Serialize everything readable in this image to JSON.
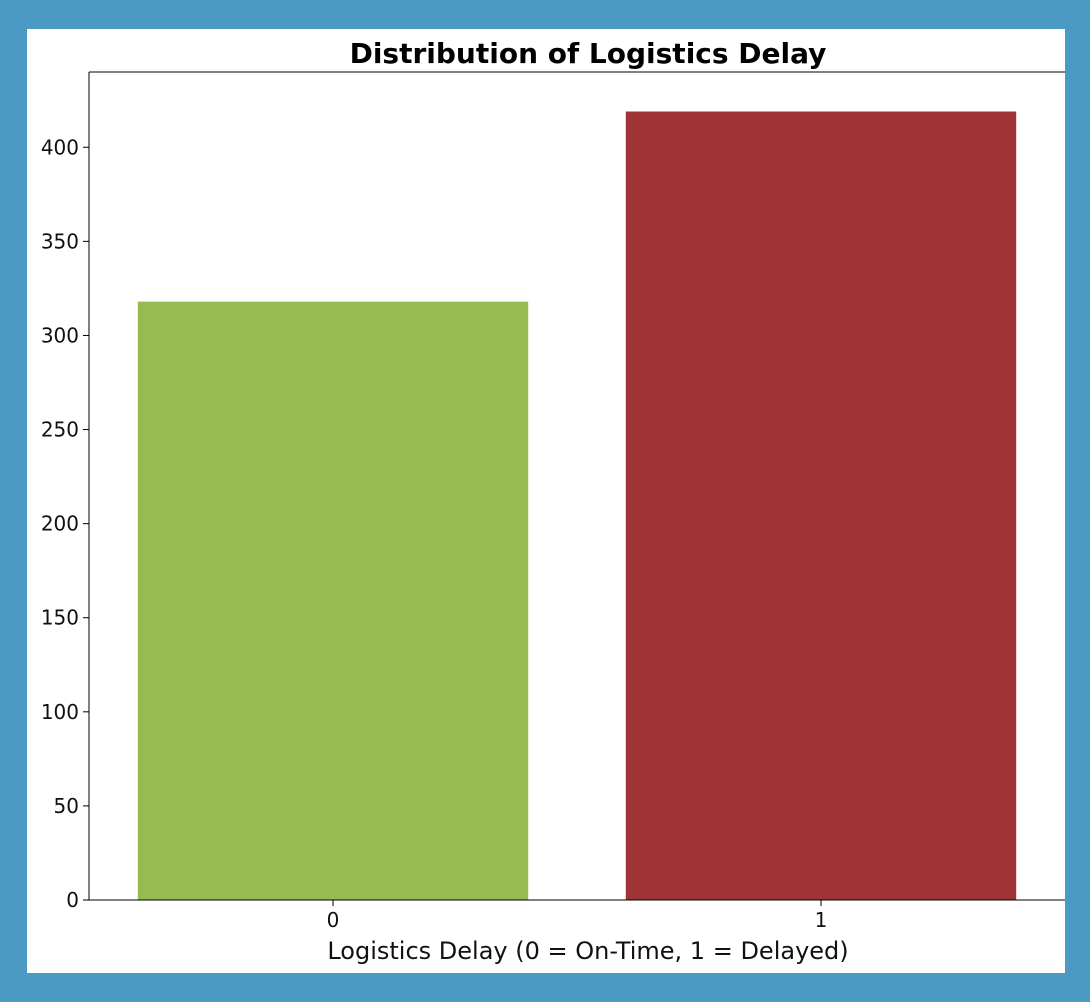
{
  "chart_data": {
    "type": "bar",
    "title": "Distribution of Logistics Delay",
    "xlabel": "Logistics Delay (0 = On-Time, 1 = Delayed)",
    "ylabel": "",
    "categories": [
      "0",
      "1"
    ],
    "values": [
      318,
      419
    ],
    "colors": [
      "#95bb51",
      "#9f3335"
    ],
    "ylim": [
      0,
      440
    ],
    "yticks": [
      0,
      50,
      100,
      150,
      200,
      250,
      300,
      350,
      400
    ],
    "grid": false,
    "legend": "none"
  }
}
